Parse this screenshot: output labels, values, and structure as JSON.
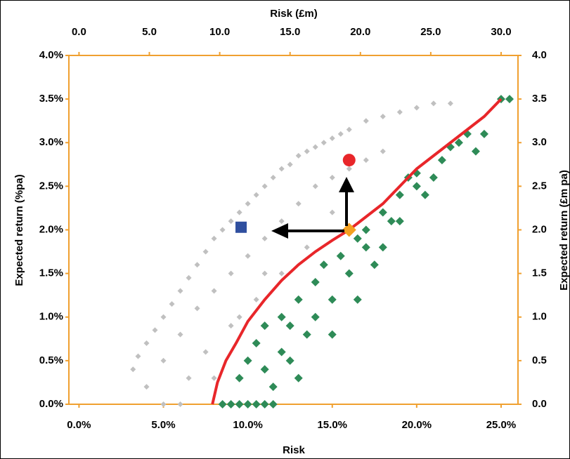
{
  "chart_data": {
    "type": "scatter",
    "x_label": "Risk",
    "x2_label": "Risk (£m)",
    "y_label": "Expected return (%pa)",
    "y2_label": "Expected return (£m pa)",
    "xlim": [
      -0.6,
      26.0
    ],
    "xticks": [
      {
        "value": 0,
        "label": "0.0%"
      },
      {
        "value": 5,
        "label": "5.0%"
      },
      {
        "value": 10,
        "label": "10.0%"
      },
      {
        "value": 15,
        "label": "15.0%"
      },
      {
        "value": 20,
        "label": "20.0%"
      },
      {
        "value": 25,
        "label": "25.0%"
      }
    ],
    "x2lim": [
      -0.72,
      31.2
    ],
    "x2ticks": [
      {
        "value": 0,
        "label": "0.0"
      },
      {
        "value": 5,
        "label": "5.0"
      },
      {
        "value": 10,
        "label": "10.0"
      },
      {
        "value": 15,
        "label": "15.0"
      },
      {
        "value": 20,
        "label": "20.0"
      },
      {
        "value": 25,
        "label": "25.0"
      },
      {
        "value": 30,
        "label": "30.0"
      }
    ],
    "ylim": [
      0,
      4
    ],
    "yticks": [
      {
        "value": 0,
        "label": "0.0%"
      },
      {
        "value": 0.5,
        "label": "0.5%"
      },
      {
        "value": 1,
        "label": "1.0%"
      },
      {
        "value": 1.5,
        "label": "1.5%"
      },
      {
        "value": 2,
        "label": "2.0%"
      },
      {
        "value": 2.5,
        "label": "2.5%"
      },
      {
        "value": 3,
        "label": "3.0%"
      },
      {
        "value": 3.5,
        "label": "3.5%"
      },
      {
        "value": 4,
        "label": "4.0%"
      }
    ],
    "y2lim": [
      0,
      4
    ],
    "y2ticks": [
      {
        "value": 0,
        "label": "0.0"
      },
      {
        "value": 0.5,
        "label": "0.5"
      },
      {
        "value": 1,
        "label": "1.0"
      },
      {
        "value": 1.5,
        "label": "1.5"
      },
      {
        "value": 2,
        "label": "2.0"
      },
      {
        "value": 2.5,
        "label": "2.5"
      },
      {
        "value": 3,
        "label": "3.0"
      },
      {
        "value": 3.5,
        "label": "3.5"
      },
      {
        "value": 4,
        "label": "4.0"
      }
    ],
    "series": [
      {
        "marker": "diamond",
        "color": "#c0c0c0",
        "x": [
          3.2,
          3.5,
          4.0,
          4.5,
          5.0,
          5.5,
          6.0,
          6.5,
          7.0,
          7.5,
          8.0,
          8.5,
          9.0,
          9.5,
          10.0,
          10.5,
          11.0,
          11.5,
          12.0,
          12.5,
          13.0,
          13.5,
          14.0,
          14.5,
          15.0,
          15.5,
          16.0,
          17.0,
          18.0,
          19.0,
          20.0,
          21.0,
          22.0,
          4.0,
          5.0,
          6.0,
          7.0,
          8.0,
          9.0,
          10.0,
          11.0,
          12.0,
          13.0,
          14.0,
          15.0,
          16.0,
          17.0,
          18.0,
          5.0,
          6.5,
          7.5,
          9.0,
          10.5,
          12.0,
          13.5,
          15.0,
          6.0,
          8.0,
          9.5,
          11.0
        ],
        "values": [
          0.4,
          0.55,
          0.7,
          0.85,
          1.0,
          1.15,
          1.3,
          1.45,
          1.6,
          1.75,
          1.9,
          2.0,
          2.1,
          2.2,
          2.3,
          2.4,
          2.5,
          2.6,
          2.7,
          2.75,
          2.85,
          2.9,
          2.95,
          3.0,
          3.05,
          3.1,
          3.15,
          3.25,
          3.3,
          3.35,
          3.4,
          3.45,
          3.45,
          0.2,
          0.5,
          0.8,
          1.1,
          1.3,
          1.5,
          1.7,
          1.9,
          2.1,
          2.3,
          2.5,
          2.6,
          2.7,
          2.8,
          2.9,
          0.0,
          0.3,
          0.6,
          0.9,
          1.2,
          1.5,
          1.8,
          2.2,
          0.0,
          0.3,
          1.0,
          1.5
        ]
      },
      {
        "marker": "diamond",
        "color": "#2e8b57",
        "x": [
          8.5,
          9.0,
          9.5,
          10.0,
          10.5,
          11.0,
          11.5,
          9.5,
          10.0,
          10.5,
          11.0,
          11.5,
          12.0,
          12.5,
          11.0,
          12.0,
          12.5,
          13.0,
          13.5,
          14.0,
          13.0,
          14.0,
          14.5,
          15.0,
          15.5,
          15.0,
          16.0,
          16.5,
          17.0,
          16.5,
          17.0,
          17.5,
          18.0,
          18.0,
          18.5,
          19.0,
          19.0,
          19.5,
          20.0,
          20.0,
          20.5,
          21.0,
          21.5,
          22.0,
          22.5,
          23.5,
          24.0,
          23.0,
          25.0,
          25.5
        ],
        "values": [
          0.0,
          0.0,
          0.0,
          0.0,
          0.0,
          0.0,
          0.0,
          0.3,
          0.5,
          0.7,
          0.4,
          0.2,
          0.6,
          0.9,
          0.9,
          1.0,
          0.5,
          1.2,
          0.8,
          1.4,
          0.3,
          1.0,
          1.6,
          1.2,
          1.7,
          0.8,
          1.5,
          1.9,
          1.8,
          1.2,
          2.0,
          1.6,
          2.2,
          1.8,
          2.1,
          2.4,
          2.1,
          2.6,
          2.5,
          2.65,
          2.4,
          2.6,
          2.8,
          2.95,
          3.0,
          2.9,
          3.1,
          3.1,
          3.5,
          3.5
        ]
      },
      {
        "marker": "line",
        "color": "#e8262a",
        "x": [
          7.9,
          8.2,
          8.7,
          9.3,
          10,
          11,
          12,
          13,
          14,
          15,
          16,
          17,
          18,
          19,
          20,
          21,
          22,
          23,
          24,
          25
        ],
        "values": [
          0,
          0.25,
          0.5,
          0.7,
          0.95,
          1.2,
          1.42,
          1.6,
          1.75,
          1.88,
          2.0,
          2.15,
          2.3,
          2.5,
          2.7,
          2.85,
          3.0,
          3.15,
          3.3,
          3.5
        ]
      },
      {
        "marker": "square",
        "color": "#2f4f9f",
        "x": [
          9.6
        ],
        "values": [
          2.03
        ]
      },
      {
        "marker": "bigdiamond",
        "color": "#f4a020",
        "x": [
          16.0
        ],
        "values": [
          2.0
        ]
      },
      {
        "marker": "circle",
        "color": "#e8262a",
        "x": [
          16.0
        ],
        "values": [
          2.8
        ]
      }
    ]
  }
}
